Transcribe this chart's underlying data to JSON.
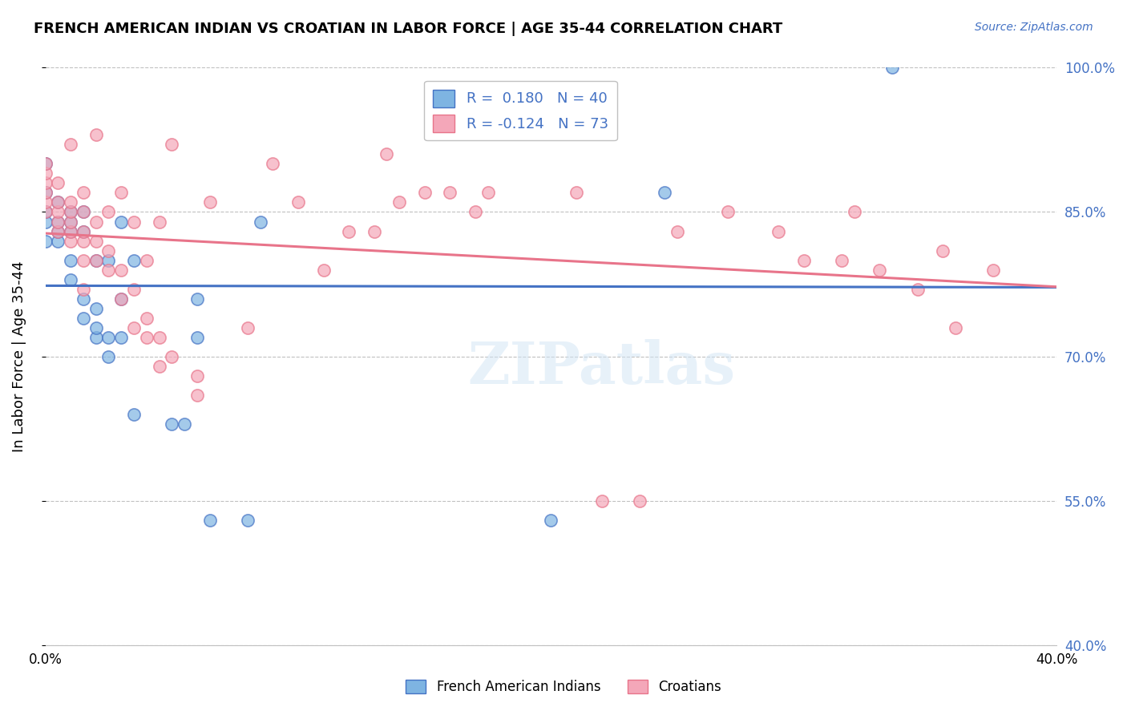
{
  "title": "FRENCH AMERICAN INDIAN VS CROATIAN IN LABOR FORCE | AGE 35-44 CORRELATION CHART",
  "source": "Source: ZipAtlas.com",
  "xlabel": "",
  "ylabel": "In Labor Force | Age 35-44",
  "xlim": [
    0.0,
    0.4
  ],
  "ylim": [
    0.4,
    1.0
  ],
  "x_ticks": [
    0.0,
    0.08,
    0.16,
    0.24,
    0.32,
    0.4
  ],
  "x_tick_labels": [
    "0.0%",
    "",
    "",
    "",
    "",
    "40.0%"
  ],
  "y_ticks": [
    0.4,
    0.55,
    0.7,
    0.85,
    1.0
  ],
  "y_tick_labels": [
    "40.0%",
    "55.0%",
    "70.0%",
    "85.0%",
    "100.0%"
  ],
  "r_blue": 0.18,
  "n_blue": 40,
  "r_pink": -0.124,
  "n_pink": 73,
  "blue_color": "#7EB4E2",
  "pink_color": "#F4A7B9",
  "blue_line_color": "#4472C4",
  "pink_line_color": "#E8748A",
  "watermark": "ZIPatlas",
  "blue_points_x": [
    0.0,
    0.0,
    0.0,
    0.0,
    0.0,
    0.005,
    0.005,
    0.005,
    0.005,
    0.01,
    0.01,
    0.01,
    0.01,
    0.01,
    0.015,
    0.015,
    0.015,
    0.015,
    0.02,
    0.02,
    0.02,
    0.02,
    0.025,
    0.025,
    0.025,
    0.03,
    0.03,
    0.03,
    0.035,
    0.035,
    0.05,
    0.055,
    0.06,
    0.06,
    0.065,
    0.08,
    0.085,
    0.2,
    0.245,
    0.335
  ],
  "blue_points_y": [
    0.82,
    0.84,
    0.85,
    0.87,
    0.9,
    0.82,
    0.83,
    0.84,
    0.86,
    0.78,
    0.8,
    0.83,
    0.84,
    0.85,
    0.74,
    0.76,
    0.83,
    0.85,
    0.72,
    0.73,
    0.75,
    0.8,
    0.7,
    0.72,
    0.8,
    0.72,
    0.76,
    0.84,
    0.64,
    0.8,
    0.63,
    0.63,
    0.72,
    0.76,
    0.53,
    0.53,
    0.84,
    0.53,
    0.87,
    1.0
  ],
  "pink_points_x": [
    0.0,
    0.0,
    0.0,
    0.0,
    0.0,
    0.0,
    0.005,
    0.005,
    0.005,
    0.005,
    0.005,
    0.01,
    0.01,
    0.01,
    0.01,
    0.01,
    0.01,
    0.015,
    0.015,
    0.015,
    0.015,
    0.015,
    0.015,
    0.02,
    0.02,
    0.02,
    0.02,
    0.025,
    0.025,
    0.025,
    0.03,
    0.03,
    0.03,
    0.035,
    0.035,
    0.035,
    0.04,
    0.04,
    0.04,
    0.045,
    0.045,
    0.045,
    0.05,
    0.05,
    0.06,
    0.06,
    0.065,
    0.08,
    0.09,
    0.1,
    0.11,
    0.12,
    0.13,
    0.135,
    0.14,
    0.15,
    0.16,
    0.17,
    0.175,
    0.21,
    0.22,
    0.235,
    0.25,
    0.27,
    0.29,
    0.3,
    0.315,
    0.32,
    0.33,
    0.345,
    0.355,
    0.36,
    0.375
  ],
  "pink_points_y": [
    0.85,
    0.86,
    0.87,
    0.88,
    0.89,
    0.9,
    0.83,
    0.84,
    0.85,
    0.86,
    0.88,
    0.82,
    0.83,
    0.84,
    0.85,
    0.86,
    0.92,
    0.77,
    0.8,
    0.82,
    0.83,
    0.85,
    0.87,
    0.8,
    0.82,
    0.84,
    0.93,
    0.79,
    0.81,
    0.85,
    0.76,
    0.79,
    0.87,
    0.73,
    0.77,
    0.84,
    0.72,
    0.74,
    0.8,
    0.69,
    0.72,
    0.84,
    0.7,
    0.92,
    0.66,
    0.68,
    0.86,
    0.73,
    0.9,
    0.86,
    0.79,
    0.83,
    0.83,
    0.91,
    0.86,
    0.87,
    0.87,
    0.85,
    0.87,
    0.87,
    0.55,
    0.55,
    0.83,
    0.85,
    0.83,
    0.8,
    0.8,
    0.85,
    0.79,
    0.77,
    0.81,
    0.73,
    0.79
  ]
}
